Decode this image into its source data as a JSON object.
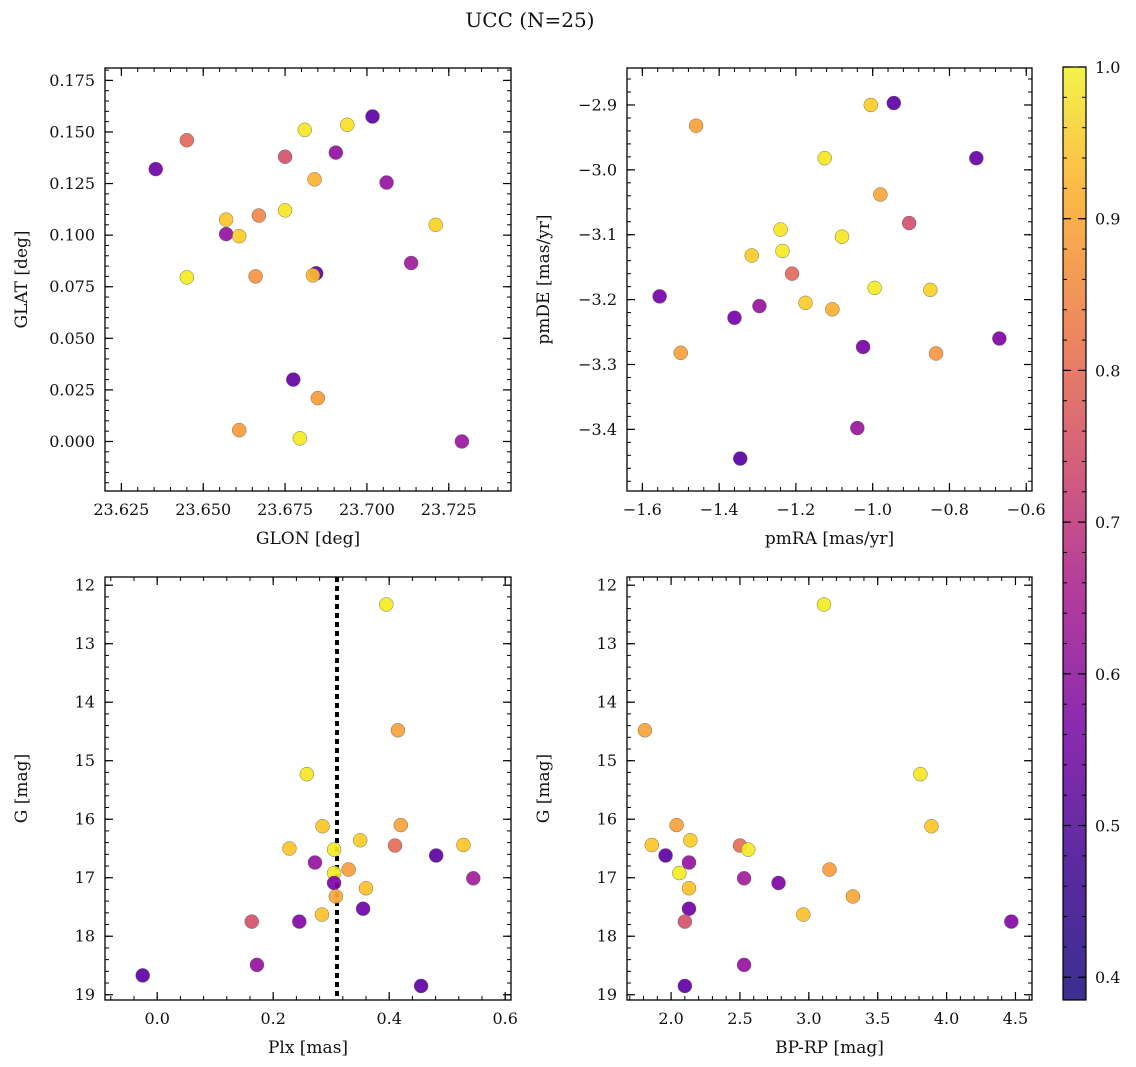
{
  "figure": {
    "title": "UCC (N=25)",
    "colorbar": {
      "colormap": "plasma",
      "range": [
        0.385,
        1.0
      ],
      "ticks": [
        0.4,
        0.5,
        0.6,
        0.7,
        0.8,
        0.9,
        1.0
      ],
      "tick_labels": [
        "0.4",
        "0.5",
        "0.6",
        "0.7",
        "0.8",
        "0.9",
        "1.0"
      ]
    }
  },
  "chart_data": [
    {
      "type": "scatter",
      "id": "spatial",
      "xlabel": "GLON [deg]",
      "ylabel": "GLAT [deg]",
      "xlim": [
        23.62,
        23.744
      ],
      "ylim": [
        -0.024,
        0.181
      ],
      "xticks": [
        23.625,
        23.65,
        23.675,
        23.7,
        23.725
      ],
      "xtick_labels": [
        "23.625",
        "23.650",
        "23.675",
        "23.700",
        "23.725"
      ],
      "yticks": [
        0.0,
        0.025,
        0.05,
        0.075,
        0.1,
        0.125,
        0.15,
        0.175
      ],
      "ytick_labels": [
        "0.000",
        "0.025",
        "0.050",
        "0.075",
        "0.100",
        "0.125",
        "0.150",
        "0.175"
      ],
      "y_inverted": false,
      "vline": null,
      "points": [
        {
          "x": 23.7017,
          "y": 0.1575,
          "c": 0.41
        },
        {
          "x": 23.6355,
          "y": 0.132,
          "c": 0.45
        },
        {
          "x": 23.645,
          "y": 0.146,
          "c": 0.73
        },
        {
          "x": 23.675,
          "y": 0.138,
          "c": 0.68
        },
        {
          "x": 23.681,
          "y": 0.151,
          "c": 0.97
        },
        {
          "x": 23.694,
          "y": 0.1535,
          "c": 0.96
        },
        {
          "x": 23.6905,
          "y": 0.14,
          "c": 0.52
        },
        {
          "x": 23.684,
          "y": 0.127,
          "c": 0.88
        },
        {
          "x": 23.706,
          "y": 0.1255,
          "c": 0.53
        },
        {
          "x": 23.657,
          "y": 0.1075,
          "c": 0.92
        },
        {
          "x": 23.657,
          "y": 0.1005,
          "c": 0.53
        },
        {
          "x": 23.661,
          "y": 0.0995,
          "c": 0.93
        },
        {
          "x": 23.667,
          "y": 0.1095,
          "c": 0.8
        },
        {
          "x": 23.675,
          "y": 0.112,
          "c": 0.97
        },
        {
          "x": 23.721,
          "y": 0.105,
          "c": 0.94
        },
        {
          "x": 23.645,
          "y": 0.0795,
          "c": 0.98
        },
        {
          "x": 23.666,
          "y": 0.08,
          "c": 0.82
        },
        {
          "x": 23.6845,
          "y": 0.0815,
          "c": 0.42
        },
        {
          "x": 23.6835,
          "y": 0.0805,
          "c": 0.9
        },
        {
          "x": 23.7135,
          "y": 0.0865,
          "c": 0.55
        },
        {
          "x": 23.6775,
          "y": 0.03,
          "c": 0.43
        },
        {
          "x": 23.685,
          "y": 0.021,
          "c": 0.84
        },
        {
          "x": 23.661,
          "y": 0.0055,
          "c": 0.84
        },
        {
          "x": 23.6795,
          "y": 0.0015,
          "c": 0.98
        },
        {
          "x": 23.729,
          "y": 0.0,
          "c": 0.54
        }
      ]
    },
    {
      "type": "scatter",
      "id": "proper-motion",
      "xlabel": "pmRA [mas/yr]",
      "ylabel": "pmDE [mas/yr]",
      "xlim": [
        -1.64,
        -0.585
      ],
      "ylim": [
        -3.495,
        -2.843
      ],
      "xticks": [
        -1.6,
        -1.4,
        -1.2,
        -1.0,
        -0.8,
        -0.6
      ],
      "xtick_labels": [
        "−1.6",
        "−1.4",
        "−1.2",
        "−1.0",
        "−0.8",
        "−0.6"
      ],
      "yticks": [
        -3.4,
        -3.3,
        -3.2,
        -3.1,
        -3.0,
        -2.9
      ],
      "ytick_labels": [
        "−3.4",
        "−3.3",
        "−3.2",
        "−3.1",
        "−3.0",
        "−2.9"
      ],
      "y_inverted": false,
      "vline": null,
      "points": [
        {
          "x": -0.945,
          "y": -2.897,
          "c": 0.41
        },
        {
          "x": -1.005,
          "y": -2.9,
          "c": 0.93
        },
        {
          "x": -1.46,
          "y": -2.932,
          "c": 0.85
        },
        {
          "x": -1.125,
          "y": -2.982,
          "c": 0.97
        },
        {
          "x": -0.73,
          "y": -2.982,
          "c": 0.43
        },
        {
          "x": -0.98,
          "y": -3.038,
          "c": 0.86
        },
        {
          "x": -0.905,
          "y": -3.082,
          "c": 0.67
        },
        {
          "x": -1.24,
          "y": -3.092,
          "c": 0.97
        },
        {
          "x": -1.08,
          "y": -3.103,
          "c": 0.97
        },
        {
          "x": -1.235,
          "y": -3.125,
          "c": 0.98
        },
        {
          "x": -1.315,
          "y": -3.132,
          "c": 0.93
        },
        {
          "x": -1.21,
          "y": -3.16,
          "c": 0.73
        },
        {
          "x": -0.995,
          "y": -3.182,
          "c": 0.98
        },
        {
          "x": -0.85,
          "y": -3.185,
          "c": 0.94
        },
        {
          "x": -1.555,
          "y": -3.195,
          "c": 0.46
        },
        {
          "x": -1.175,
          "y": -3.205,
          "c": 0.93
        },
        {
          "x": -1.295,
          "y": -3.21,
          "c": 0.53
        },
        {
          "x": -1.105,
          "y": -3.215,
          "c": 0.88
        },
        {
          "x": -1.36,
          "y": -3.228,
          "c": 0.46
        },
        {
          "x": -0.67,
          "y": -3.26,
          "c": 0.48
        },
        {
          "x": -1.025,
          "y": -3.273,
          "c": 0.47
        },
        {
          "x": -1.5,
          "y": -3.282,
          "c": 0.85
        },
        {
          "x": -0.835,
          "y": -3.283,
          "c": 0.83
        },
        {
          "x": -1.04,
          "y": -3.398,
          "c": 0.54
        },
        {
          "x": -1.345,
          "y": -3.445,
          "c": 0.4
        }
      ]
    },
    {
      "type": "scatter",
      "id": "plx-cmd",
      "xlabel": "Plx [mas]",
      "ylabel": "G [mag]",
      "xlim": [
        -0.09,
        0.61
      ],
      "ylim": [
        19.09,
        11.86
      ],
      "xticks": [
        0.0,
        0.2,
        0.4,
        0.6
      ],
      "xtick_labels": [
        "0.0",
        "0.2",
        "0.4",
        "0.6"
      ],
      "yticks": [
        12,
        13,
        14,
        15,
        16,
        17,
        18,
        19
      ],
      "ytick_labels": [
        "12",
        "13",
        "14",
        "15",
        "16",
        "17",
        "18",
        "19"
      ],
      "y_inverted": true,
      "vline": {
        "x": 0.31,
        "style": "dotted"
      },
      "points": [
        {
          "x": 0.395,
          "y": 12.33,
          "c": 0.98
        },
        {
          "x": 0.415,
          "y": 14.48,
          "c": 0.85
        },
        {
          "x": 0.258,
          "y": 15.23,
          "c": 0.97
        },
        {
          "x": 0.285,
          "y": 16.12,
          "c": 0.92
        },
        {
          "x": 0.42,
          "y": 16.1,
          "c": 0.85
        },
        {
          "x": 0.35,
          "y": 16.36,
          "c": 0.93
        },
        {
          "x": 0.228,
          "y": 16.5,
          "c": 0.92
        },
        {
          "x": 0.305,
          "y": 16.52,
          "c": 0.98
        },
        {
          "x": 0.41,
          "y": 16.45,
          "c": 0.74
        },
        {
          "x": 0.528,
          "y": 16.44,
          "c": 0.92
        },
        {
          "x": 0.481,
          "y": 16.62,
          "c": 0.41
        },
        {
          "x": 0.272,
          "y": 16.74,
          "c": 0.53
        },
        {
          "x": 0.33,
          "y": 16.86,
          "c": 0.84
        },
        {
          "x": 0.305,
          "y": 16.92,
          "c": 0.98
        },
        {
          "x": 0.545,
          "y": 17.01,
          "c": 0.56
        },
        {
          "x": 0.305,
          "y": 17.09,
          "c": 0.48
        },
        {
          "x": 0.36,
          "y": 17.18,
          "c": 0.91
        },
        {
          "x": 0.308,
          "y": 17.32,
          "c": 0.86
        },
        {
          "x": 0.355,
          "y": 17.53,
          "c": 0.45
        },
        {
          "x": 0.284,
          "y": 17.63,
          "c": 0.91
        },
        {
          "x": 0.163,
          "y": 17.75,
          "c": 0.68
        },
        {
          "x": 0.245,
          "y": 17.75,
          "c": 0.49
        },
        {
          "x": 0.172,
          "y": 18.49,
          "c": 0.53
        },
        {
          "x": -0.025,
          "y": 18.67,
          "c": 0.41
        },
        {
          "x": 0.455,
          "y": 18.85,
          "c": 0.42
        }
      ]
    },
    {
      "type": "scatter",
      "id": "color-cmd",
      "xlabel": "BP-RP [mag]",
      "ylabel": "G [mag]",
      "xlim": [
        1.68,
        4.62
      ],
      "ylim": [
        19.09,
        11.86
      ],
      "xticks": [
        2.0,
        2.5,
        3.0,
        3.5,
        4.0,
        4.5
      ],
      "xtick_labels": [
        "2.0",
        "2.5",
        "3.0",
        "3.5",
        "4.0",
        "4.5"
      ],
      "yticks": [
        12,
        13,
        14,
        15,
        16,
        17,
        18,
        19
      ],
      "ytick_labels": [
        "12",
        "13",
        "14",
        "15",
        "16",
        "17",
        "18",
        "19"
      ],
      "y_inverted": true,
      "vline": null,
      "points": [
        {
          "x": 3.11,
          "y": 12.33,
          "c": 0.98
        },
        {
          "x": 1.81,
          "y": 14.48,
          "c": 0.85
        },
        {
          "x": 3.81,
          "y": 15.23,
          "c": 0.97
        },
        {
          "x": 3.89,
          "y": 16.12,
          "c": 0.92
        },
        {
          "x": 2.04,
          "y": 16.1,
          "c": 0.85
        },
        {
          "x": 2.14,
          "y": 16.36,
          "c": 0.93
        },
        {
          "x": 1.86,
          "y": 16.44,
          "c": 0.92
        },
        {
          "x": 2.5,
          "y": 16.45,
          "c": 0.74
        },
        {
          "x": 2.56,
          "y": 16.52,
          "c": 0.98
        },
        {
          "x": 1.96,
          "y": 16.62,
          "c": 0.41
        },
        {
          "x": 2.13,
          "y": 16.74,
          "c": 0.53
        },
        {
          "x": 3.15,
          "y": 16.86,
          "c": 0.84
        },
        {
          "x": 2.06,
          "y": 16.92,
          "c": 0.98
        },
        {
          "x": 2.53,
          "y": 17.01,
          "c": 0.56
        },
        {
          "x": 2.78,
          "y": 17.09,
          "c": 0.48
        },
        {
          "x": 2.13,
          "y": 17.18,
          "c": 0.91
        },
        {
          "x": 3.32,
          "y": 17.32,
          "c": 0.86
        },
        {
          "x": 2.13,
          "y": 17.53,
          "c": 0.45
        },
        {
          "x": 2.96,
          "y": 17.63,
          "c": 0.91
        },
        {
          "x": 2.1,
          "y": 17.75,
          "c": 0.68
        },
        {
          "x": 4.47,
          "y": 17.75,
          "c": 0.49
        },
        {
          "x": 2.53,
          "y": 18.49,
          "c": 0.53
        },
        {
          "x": 2.1,
          "y": 18.85,
          "c": 0.42
        }
      ]
    }
  ]
}
